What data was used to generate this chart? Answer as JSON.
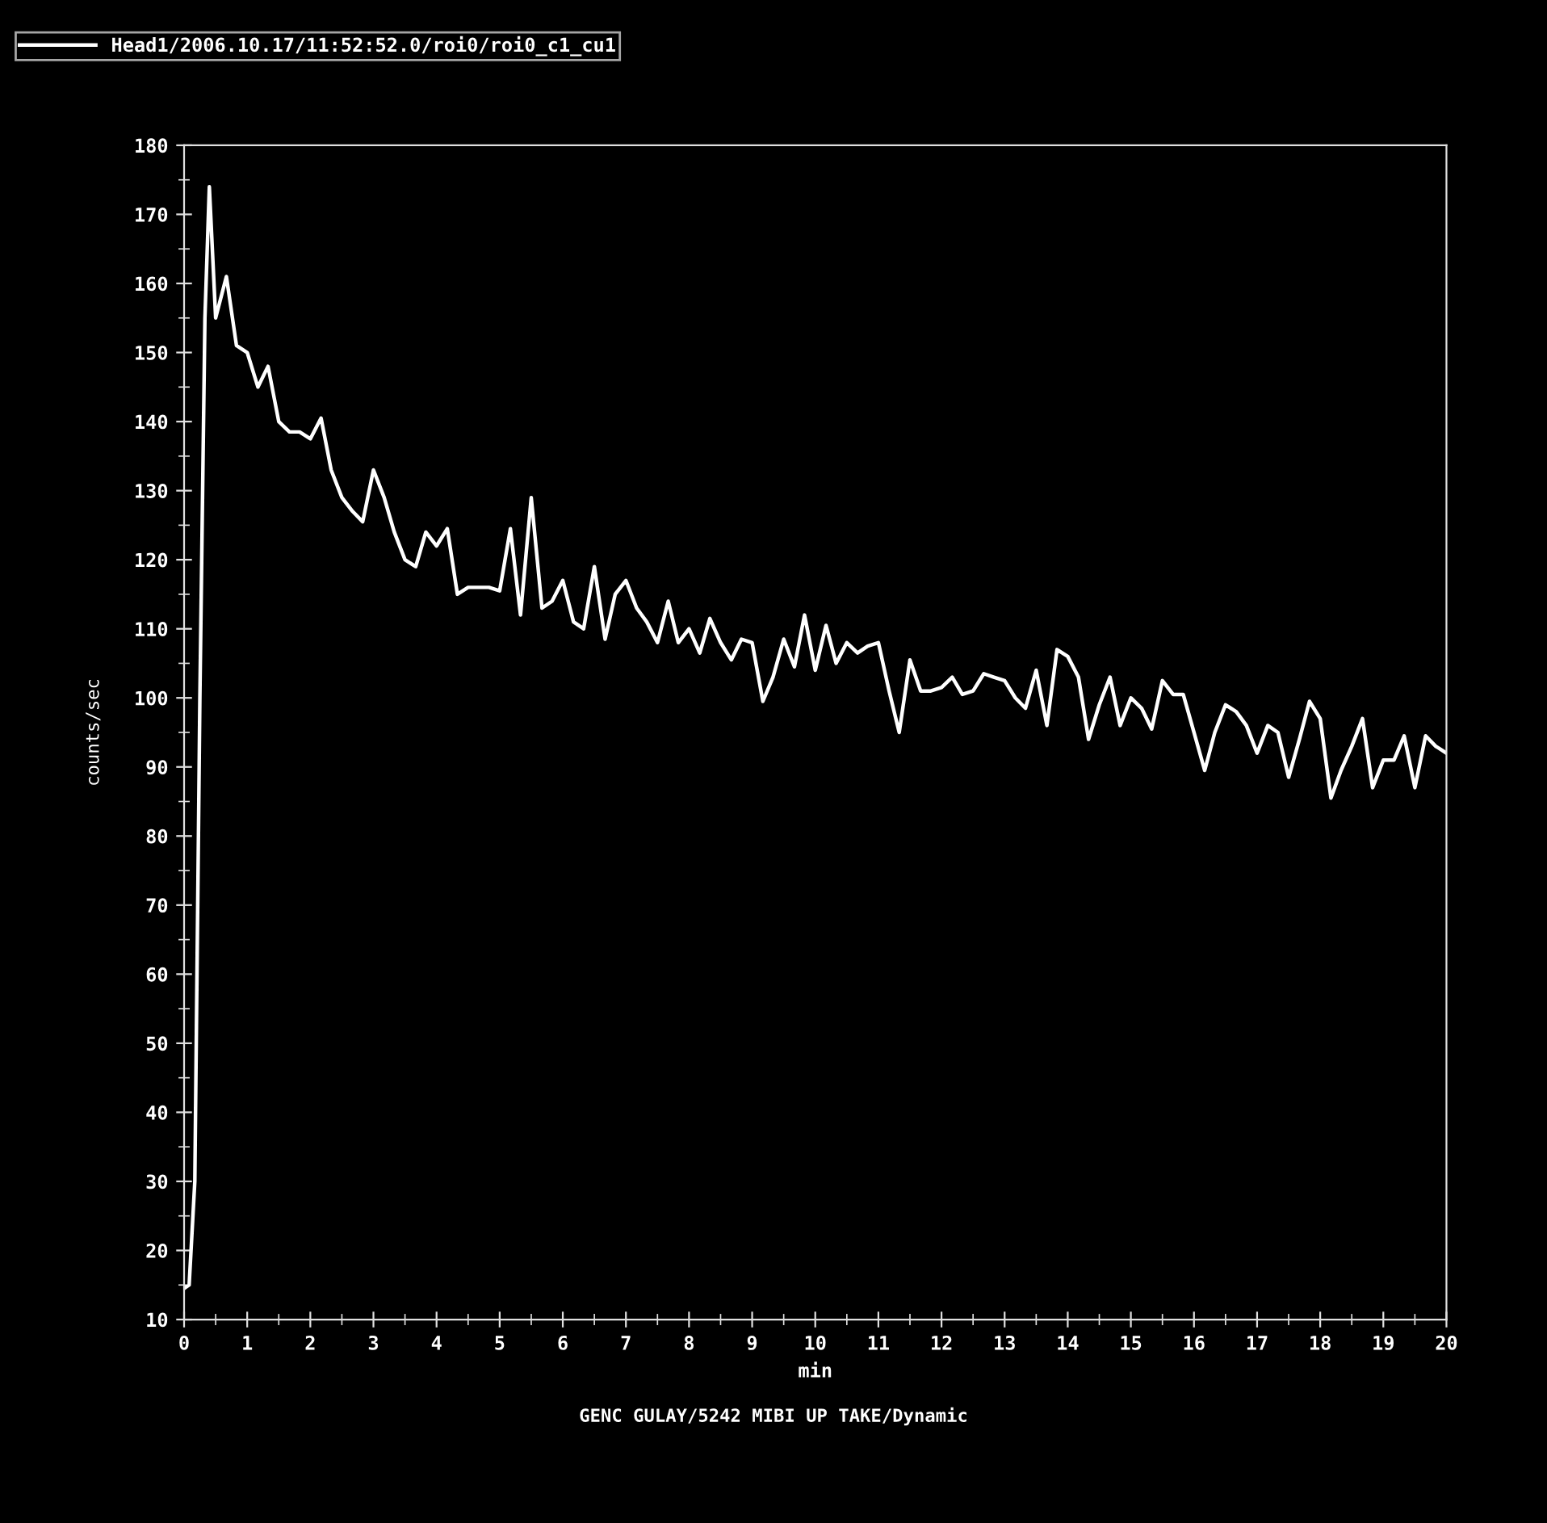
{
  "chart_data": {
    "type": "line",
    "xlabel": "min",
    "ylabel": "counts/sec",
    "xlim": [
      0,
      20
    ],
    "xticks": [
      0,
      1,
      2,
      3,
      4,
      5,
      6,
      7,
      8,
      9,
      10,
      11,
      12,
      13,
      14,
      15,
      16,
      17,
      18,
      19,
      20
    ],
    "ylim": [
      10,
      180
    ],
    "yticks": [
      10,
      20,
      30,
      40,
      50,
      60,
      70,
      80,
      90,
      100,
      110,
      120,
      130,
      140,
      150,
      160,
      170,
      180
    ],
    "grid": false,
    "legend": "top left",
    "marker": "none",
    "line_style": "solid",
    "annotations": [
      "GENC GULAY/5242 MIBI UP TAKE/Dynamic"
    ],
    "series": [
      {
        "name": "Head1/2006.10.17/11:52:52.0/roi0/roi0_c1_cu1",
        "color": "#ffffff",
        "x": [
          0.0,
          0.08,
          0.17,
          0.25,
          0.33,
          0.4,
          0.5,
          0.67,
          0.83,
          1.0,
          1.17,
          1.33,
          1.5,
          1.67,
          1.83,
          2.0,
          2.17,
          2.33,
          2.5,
          2.67,
          2.83,
          3.0,
          3.17,
          3.33,
          3.5,
          3.67,
          3.83,
          4.0,
          4.17,
          4.33,
          4.5,
          4.67,
          4.83,
          5.0,
          5.17,
          5.33,
          5.5,
          5.67,
          5.83,
          6.0,
          6.17,
          6.33,
          6.5,
          6.67,
          6.83,
          7.0,
          7.17,
          7.33,
          7.5,
          7.67,
          7.83,
          8.0,
          8.17,
          8.33,
          8.5,
          8.67,
          8.83,
          9.0,
          9.17,
          9.33,
          9.5,
          9.67,
          9.83,
          10.0,
          10.17,
          10.33,
          10.5,
          10.67,
          10.83,
          11.0,
          11.17,
          11.33,
          11.5,
          11.67,
          11.83,
          12.0,
          12.17,
          12.33,
          12.5,
          12.67,
          12.83,
          13.0,
          13.17,
          13.33,
          13.5,
          13.67,
          13.83,
          14.0,
          14.17,
          14.33,
          14.5,
          14.67,
          14.83,
          15.0,
          15.17,
          15.33,
          15.5,
          15.67,
          15.83,
          16.0,
          16.17,
          16.33,
          16.5,
          16.67,
          16.83,
          17.0,
          17.17,
          17.33,
          17.5,
          17.67,
          17.83,
          18.0,
          18.17,
          18.33,
          18.5,
          18.67,
          18.83,
          19.0,
          19.17,
          19.33,
          19.5,
          19.67,
          19.83,
          20.0
        ],
        "values": [
          14.5,
          15,
          30,
          100,
          155,
          174,
          155,
          161,
          151,
          150,
          145,
          148,
          140,
          138.5,
          138.5,
          137.5,
          140.5,
          133,
          129,
          127,
          125.5,
          133,
          129,
          124,
          120,
          119,
          124,
          122,
          124.5,
          115,
          116,
          116,
          116,
          115.5,
          124.5,
          112,
          129,
          113,
          114,
          117,
          111,
          110,
          119,
          108.5,
          115,
          117,
          113,
          111,
          108,
          114,
          108,
          110,
          106.5,
          111.5,
          108,
          105.5,
          108.5,
          108,
          99.5,
          103,
          108.5,
          104.5,
          112,
          104,
          110.5,
          105,
          108,
          106.5,
          107.5,
          108,
          101,
          95,
          105.5,
          101,
          101,
          101.5,
          103,
          100.5,
          101,
          103.5,
          103,
          102.5,
          100,
          98.5,
          104,
          96,
          107,
          106,
          103,
          94,
          99,
          103,
          96,
          100,
          98.5,
          95.5,
          102.5,
          100.5,
          100.5,
          95,
          89.5,
          95,
          99,
          98,
          96,
          92,
          96,
          95,
          88.5,
          94,
          99.5,
          97,
          85.5,
          89.5,
          93,
          97,
          87,
          91,
          91,
          94.5,
          87,
          94.5,
          93,
          92
        ]
      }
    ]
  }
}
